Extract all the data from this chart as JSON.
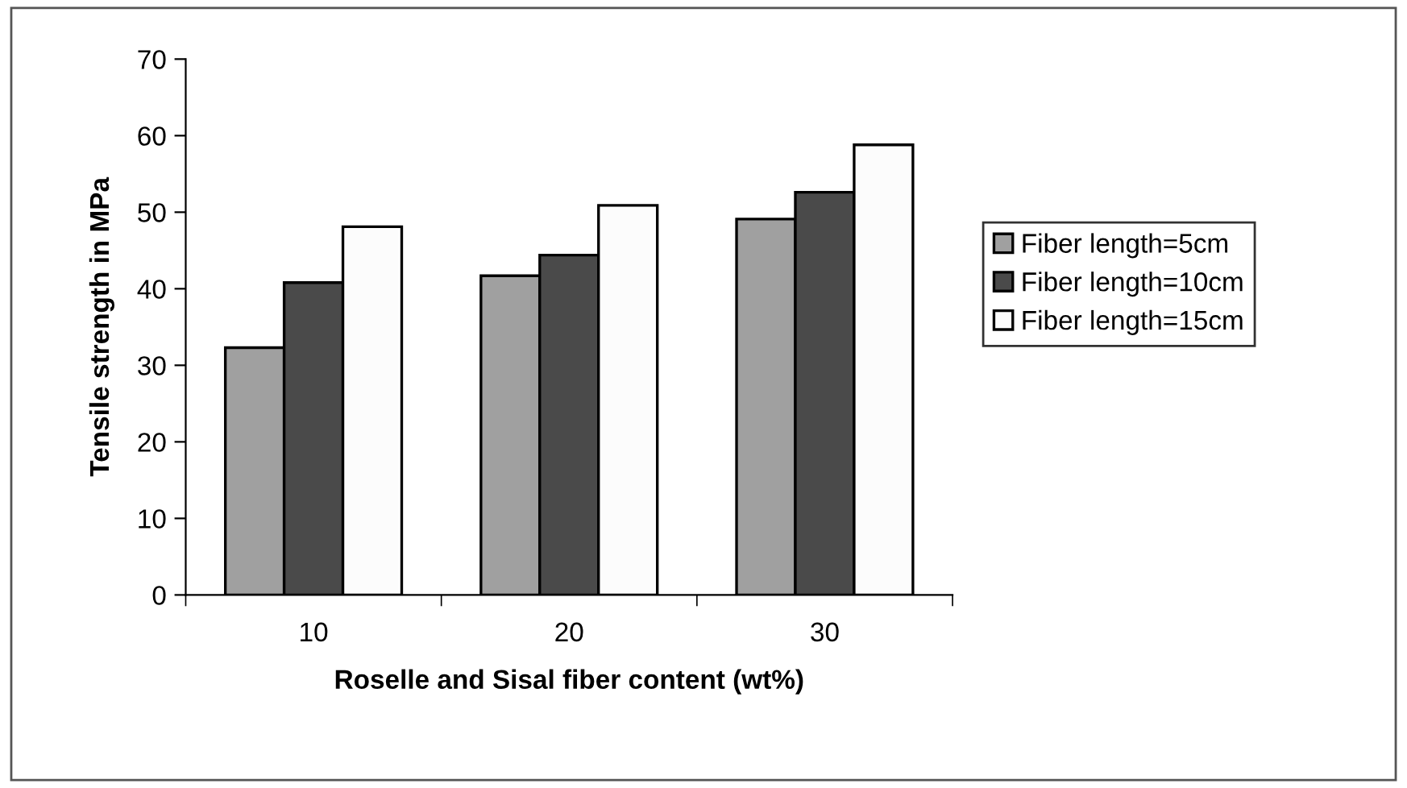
{
  "chart_data": {
    "type": "bar",
    "xlabel": "Roselle and Sisal fiber content (wt%)",
    "ylabel": "Tensile strength in MPa",
    "categories": [
      "10",
      "20",
      "30"
    ],
    "series": [
      {
        "name": "Fiber length=5cm",
        "color": "#a0a0a0",
        "values": [
          32.3,
          41.7,
          49.1
        ]
      },
      {
        "name": "Fiber length=10cm",
        "color": "#4a4a4a",
        "values": [
          40.8,
          44.4,
          52.6
        ]
      },
      {
        "name": "Fiber length=15cm",
        "color": "#fcfcfc",
        "values": [
          48.1,
          50.9,
          58.8
        ]
      }
    ],
    "ylim": [
      0,
      70
    ],
    "yticks": [
      0,
      10,
      20,
      30,
      40,
      50,
      60,
      70
    ],
    "grid": false,
    "legend": "right"
  }
}
